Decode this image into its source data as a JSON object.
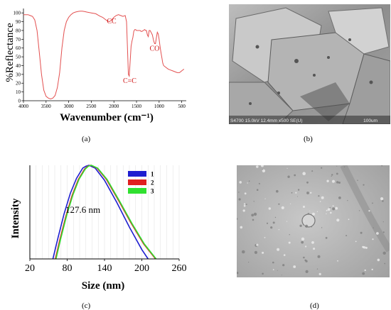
{
  "captions": {
    "a": "(a)",
    "b": "(b)",
    "c": "(c)",
    "d": "(d)"
  },
  "sem_b": {
    "info_text": "S4700 15.0kV 12.4mm x500 SE(U)",
    "scale_text": "100um"
  },
  "sem_d": {
    "info_lines": [
      "",
      "",
      ""
    ],
    "scale_text": ""
  },
  "chart_data": [
    {
      "type": "line",
      "panel": "a",
      "title": "",
      "xlabel": "Wavenumber (cm⁻¹)",
      "ylabel": "%Reflectance",
      "xlim": [
        4000,
        400
      ],
      "ylim": [
        0,
        105
      ],
      "xticks": [
        4000,
        3500,
        3000,
        2500,
        2000,
        1500,
        1000,
        500
      ],
      "yticks": [
        0,
        10,
        20,
        30,
        40,
        50,
        60,
        70,
        80,
        90,
        100
      ],
      "grid": false,
      "color": "#e35050",
      "annotations": [
        {
          "text": "CC",
          "x": 2050,
          "y": 88
        },
        {
          "text": "C=C",
          "x": 1650,
          "y": 20
        },
        {
          "text": "CO",
          "x": 1100,
          "y": 57
        }
      ],
      "series": [
        {
          "x": [
            4000,
            3950,
            3900,
            3850,
            3800,
            3750,
            3700,
            3650,
            3600,
            3550,
            3500,
            3450,
            3400,
            3350,
            3300,
            3250,
            3200,
            3150,
            3100,
            3050,
            3000,
            2950,
            2900,
            2850,
            2800,
            2750,
            2700,
            2650,
            2600,
            2550,
            2500,
            2450,
            2400,
            2350,
            2300,
            2250,
            2200,
            2150,
            2100,
            2050,
            2000,
            1950,
            1900,
            1850,
            1800,
            1750,
            1720,
            1700,
            1680,
            1660,
            1640,
            1620,
            1600,
            1580,
            1560,
            1540,
            1520,
            1500,
            1480,
            1450,
            1420,
            1400,
            1380,
            1350,
            1320,
            1300,
            1280,
            1260,
            1240,
            1220,
            1200,
            1180,
            1150,
            1120,
            1100,
            1080,
            1060,
            1040,
            1020,
            1000,
            980,
            960,
            940,
            920,
            900,
            850,
            800,
            750,
            700,
            650,
            600,
            550,
            500,
            450
          ],
          "y": [
            98,
            98,
            98,
            97,
            96,
            92,
            80,
            55,
            30,
            12,
            5,
            3,
            2,
            3,
            6,
            15,
            32,
            60,
            80,
            90,
            95,
            98,
            100,
            101,
            101.5,
            102,
            102,
            101.5,
            101,
            100.5,
            100,
            99.5,
            99,
            97.5,
            96,
            95,
            93,
            91,
            90,
            92,
            95,
            97,
            98,
            97,
            96,
            97,
            90,
            60,
            30,
            28,
            45,
            62,
            68,
            72,
            79,
            81,
            81,
            80,
            80,
            80,
            80,
            79,
            79,
            80,
            81,
            80,
            80,
            75,
            73,
            80,
            80,
            78,
            75,
            68,
            65,
            65,
            72,
            78,
            76,
            70,
            62,
            55,
            49,
            43,
            40,
            38,
            36,
            35,
            34,
            33,
            32,
            32,
            34,
            36
          ]
        }
      ]
    },
    {
      "type": "line",
      "panel": "c",
      "title": "",
      "xlabel": "Size (nm)",
      "ylabel": "Intensity",
      "xlim": [
        20,
        260
      ],
      "ylim": [
        0,
        1
      ],
      "xticks": [
        20,
        80,
        140,
        200,
        260
      ],
      "grid": true,
      "legend_position": "top-right",
      "annotation": "127.6 nm",
      "series": [
        {
          "name": "1",
          "color": "#1f1fd0",
          "x": [
            57,
            65,
            75,
            85,
            95,
            105,
            110,
            115,
            125,
            140,
            160,
            180,
            200,
            210
          ],
          "y": [
            0,
            0.22,
            0.48,
            0.7,
            0.86,
            0.97,
            0.99,
            1.0,
            0.97,
            0.84,
            0.6,
            0.34,
            0.1,
            0
          ]
        },
        {
          "name": "2",
          "color": "#e02020",
          "x": [
            61,
            68,
            78,
            88,
            98,
            108,
            113,
            118,
            128,
            143,
            163,
            183,
            203,
            222
          ],
          "y": [
            0,
            0.2,
            0.46,
            0.68,
            0.85,
            0.96,
            0.99,
            1.0,
            0.97,
            0.85,
            0.62,
            0.38,
            0.16,
            0
          ]
        },
        {
          "name": "3",
          "color": "#30e030",
          "x": [
            62,
            69,
            79,
            89,
            99,
            109,
            114,
            119,
            129,
            144,
            164,
            184,
            204,
            223
          ],
          "y": [
            0,
            0.2,
            0.46,
            0.68,
            0.85,
            0.96,
            0.99,
            1.0,
            0.97,
            0.85,
            0.62,
            0.38,
            0.16,
            0
          ]
        }
      ]
    }
  ]
}
